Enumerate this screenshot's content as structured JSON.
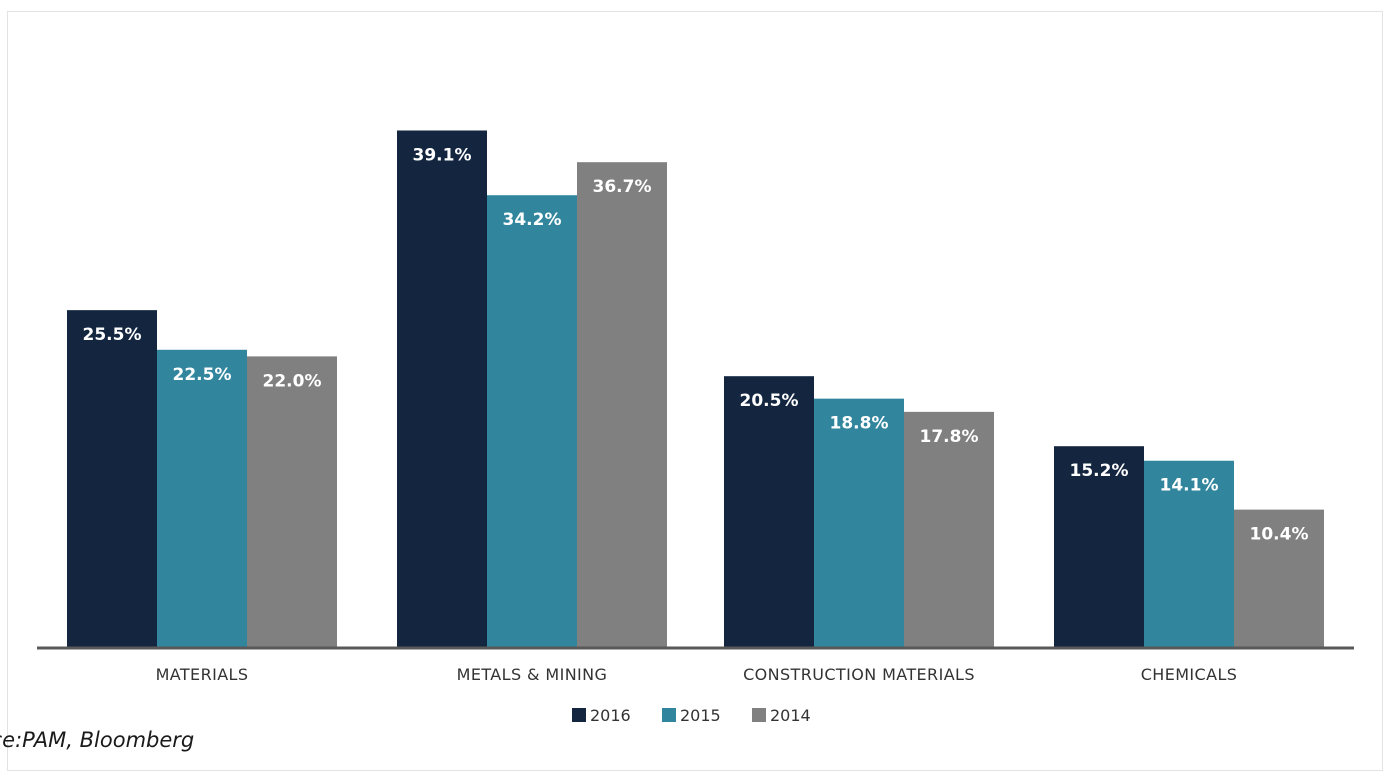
{
  "chart_data": {
    "type": "bar",
    "categories": [
      "MATERIALS",
      "METALS & MINING",
      "CONSTRUCTION MATERIALS",
      "CHEMICALS"
    ],
    "series": [
      {
        "name": "2016",
        "values": [
          25.5,
          39.1,
          20.5,
          15.2
        ],
        "labels": [
          "25.5%",
          "39.1%",
          "20.5%",
          "15.2%"
        ],
        "color": "#13253f"
      },
      {
        "name": "2015",
        "values": [
          22.5,
          34.2,
          18.8,
          14.1
        ],
        "labels": [
          "22.5%",
          "34.2%",
          "18.8%",
          "14.1%"
        ],
        "color": "#31869e"
      },
      {
        "name": "2014",
        "values": [
          22.0,
          36.7,
          17.8,
          10.4
        ],
        "labels": [
          "22.0%",
          "36.7%",
          "17.8%",
          "10.4%"
        ],
        "color": "#808080"
      }
    ],
    "title": "",
    "xlabel": "",
    "ylabel": "",
    "ylim": [
      0,
      42
    ],
    "grid": false,
    "legend_position": "bottom",
    "axis_color": "#595959"
  },
  "source_note": "rce:PAM, Bloomberg"
}
